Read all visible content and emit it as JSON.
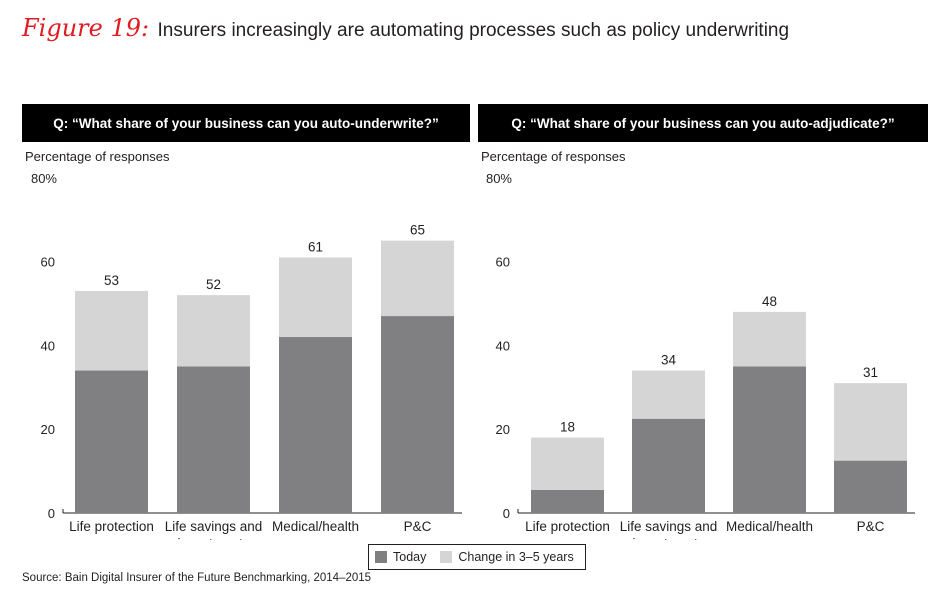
{
  "figure": {
    "label": "Figure 19:",
    "title": "Insurers increasingly are automating processes such as policy underwriting"
  },
  "colors": {
    "today": "#808083",
    "change": "#d5d5d6",
    "header_bg": "#000000",
    "accent": "#e11b22"
  },
  "legend": {
    "today_label": "Today",
    "change_label": "Change in 3–5 years"
  },
  "source": "Source: Bain Digital Insurer of the Future Benchmarking, 2014–2015",
  "chart_data": [
    {
      "type": "bar",
      "stacked": true,
      "title": "Q: “What share of your business can you auto-underwrite?”",
      "ylabel": "Percentage of responses",
      "ylim": [
        0,
        80
      ],
      "yticks": [
        "0",
        "20",
        "40",
        "60",
        "80%"
      ],
      "categories": [
        [
          "Life protection"
        ],
        [
          "Life savings and",
          "investments"
        ],
        [
          "Medical/health"
        ],
        [
          "P&C"
        ]
      ],
      "series": [
        {
          "name": "Today",
          "values": [
            34,
            35,
            42,
            47
          ]
        },
        {
          "name": "Change in 3–5 years",
          "values": [
            19,
            17,
            19,
            18
          ]
        }
      ],
      "totals": [
        53,
        52,
        61,
        65
      ]
    },
    {
      "type": "bar",
      "stacked": true,
      "title": "Q: “What share of your business can you auto-adjudicate?”",
      "ylabel": "Percentage of responses",
      "ylim": [
        0,
        80
      ],
      "yticks": [
        "0",
        "20",
        "40",
        "60",
        "80%"
      ],
      "categories": [
        [
          "Life protection"
        ],
        [
          "Life savings and",
          "investments"
        ],
        [
          "Medical/health"
        ],
        [
          "P&C"
        ]
      ],
      "series": [
        {
          "name": "Today",
          "values": [
            5.5,
            22.5,
            35,
            12.5
          ]
        },
        {
          "name": "Change in 3–5 years",
          "values": [
            12.5,
            11.5,
            13,
            18.5
          ]
        }
      ],
      "totals": [
        18,
        34,
        48,
        31
      ]
    }
  ]
}
